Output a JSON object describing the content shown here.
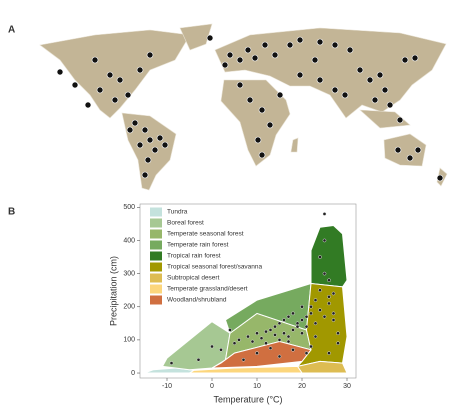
{
  "panel_labels": [
    "A",
    "B"
  ],
  "chart_data": {
    "type": "scatter",
    "x_label": "Temperature (°C)",
    "y_label": "Precipitation (cm)",
    "xlim": [
      -16,
      32
    ],
    "ylim": [
      -15,
      510
    ],
    "xticks": [
      -10,
      0,
      10,
      20,
      30
    ],
    "yticks": [
      0,
      100,
      200,
      300,
      400,
      500
    ],
    "point_color": "#222222",
    "x": [
      25,
      -9,
      -3,
      0,
      2,
      5,
      6,
      8,
      9,
      10,
      11,
      12,
      12,
      13,
      14,
      14,
      15,
      15,
      16,
      16,
      17,
      17,
      18,
      18,
      19,
      19,
      20,
      20,
      21,
      21,
      22,
      22,
      23,
      23,
      24,
      24,
      25,
      25,
      26,
      26,
      27,
      27,
      28,
      28,
      24,
      25,
      26,
      22,
      21,
      18,
      15,
      10,
      7,
      4,
      23,
      27,
      20,
      17,
      13,
      26
    ],
    "values": [
      480,
      30,
      40,
      80,
      70,
      90,
      100,
      110,
      95,
      120,
      105,
      125,
      90,
      130,
      115,
      140,
      100,
      150,
      120,
      160,
      110,
      170,
      130,
      180,
      140,
      150,
      160,
      120,
      170,
      140,
      180,
      200,
      150,
      220,
      190,
      250,
      170,
      300,
      210,
      230,
      180,
      160,
      120,
      90,
      350,
      400,
      60,
      80,
      60,
      70,
      50,
      60,
      40,
      130,
      110,
      240,
      200,
      95,
      75,
      280
    ],
    "biomes": [
      {
        "name": "Tundra",
        "color": "#c4e2dd",
        "x": [
          -15,
          -10,
          -5,
          -4,
          -8,
          -13
        ],
        "values": [
          0,
          0,
          0,
          8,
          15,
          10
        ]
      },
      {
        "name": "Boreal forest",
        "color": "#a6c893",
        "x": [
          -11,
          -5,
          0,
          3,
          4,
          0,
          -5,
          -10
        ],
        "values": [
          20,
          10,
          15,
          40,
          120,
          155,
          100,
          45
        ]
      },
      {
        "name": "Temperate seasonal forest",
        "color": "#97b76a",
        "x": [
          3,
          5,
          15,
          22,
          21,
          10,
          4
        ],
        "values": [
          40,
          60,
          95,
          70,
          130,
          180,
          120
        ]
      },
      {
        "name": "Temperate rain forest",
        "color": "#76aa5f",
        "x": [
          4,
          10,
          21,
          22,
          10,
          3
        ],
        "values": [
          120,
          180,
          130,
          270,
          220,
          160
        ]
      },
      {
        "name": "Tropical rain forest",
        "color": "#327b24",
        "x": [
          22,
          29,
          30,
          29,
          27,
          24,
          22
        ],
        "values": [
          270,
          260,
          280,
          420,
          445,
          440,
          370
        ]
      },
      {
        "name": "Tropical seasonal forest/savanna",
        "color": "#a19800",
        "x": [
          19,
          24,
          29,
          30,
          29,
          22,
          21,
          22,
          20
        ],
        "values": [
          20,
          35,
          30,
          110,
          260,
          270,
          130,
          70,
          35
        ]
      },
      {
        "name": "Subtropical desert",
        "color": "#ddbc52",
        "x": [
          20,
          30,
          29,
          24,
          19
        ],
        "values": [
          0,
          0,
          30,
          35,
          20
        ]
      },
      {
        "name": "Temperate grassland/desert",
        "color": "#fcd67c",
        "x": [
          -5,
          20,
          19,
          5,
          -4
        ],
        "values": [
          0,
          0,
          20,
          15,
          8
        ]
      },
      {
        "name": "Woodland/shrubland",
        "color": "#d06f40",
        "x": [
          0,
          10,
          20,
          22,
          15,
          5,
          2
        ],
        "values": [
          15,
          20,
          35,
          70,
          95,
          60,
          30
        ]
      }
    ]
  }
}
